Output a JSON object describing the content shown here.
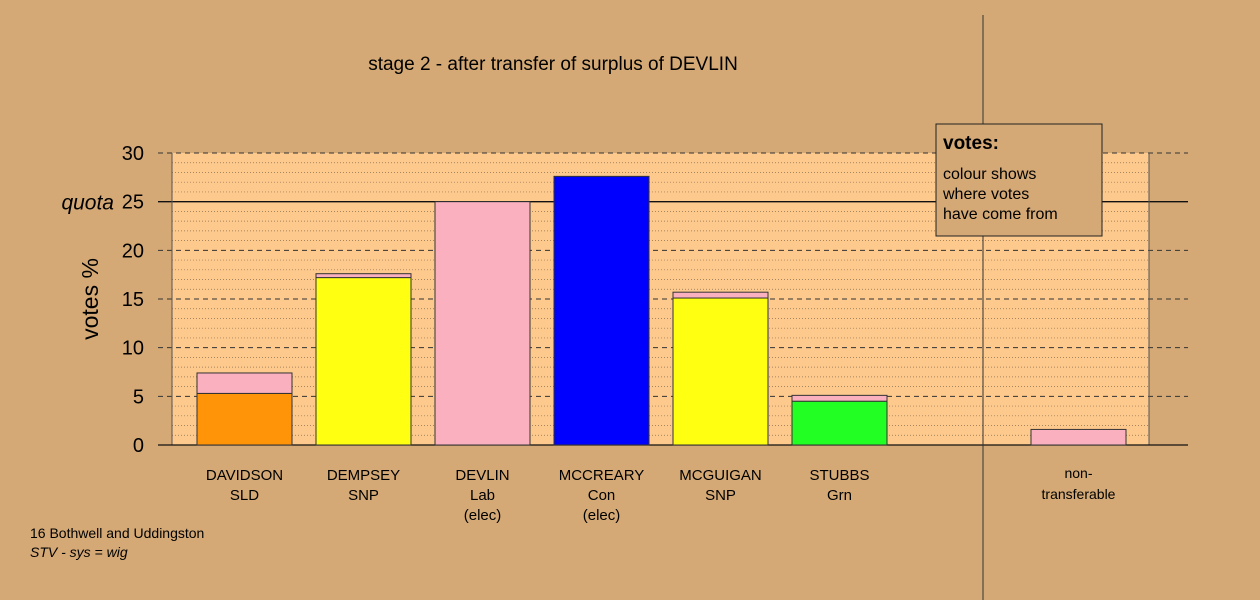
{
  "colors": {
    "background": "#d4a976",
    "plot_area": "#fdc98d",
    "SLD": "#ff9408",
    "SNP": "#ffff12",
    "Lab": "#fbb0c0",
    "Con": "#0000ff",
    "Grn": "#22ff22"
  },
  "title": "stage 2 - after transfer of surplus of DEVLIN",
  "footer": {
    "line1": "16 Bothwell and Uddingston",
    "line2": "STV - sys = wig"
  },
  "legend": {
    "heading": "votes:",
    "lines": [
      "colour shows",
      "where votes",
      "have come from"
    ]
  },
  "chart_data": {
    "type": "bar",
    "stacked": true,
    "title": "stage 2 - after transfer of surplus of DEVLIN",
    "ylabel": "votes %",
    "ylim": [
      0,
      30
    ],
    "yticks": [
      0,
      5,
      10,
      15,
      20,
      25,
      30
    ],
    "quota": {
      "label": "quota",
      "value": 25
    },
    "grid": true,
    "candidates": [
      {
        "name": "DAVIDSON",
        "party": "SLD",
        "note": "",
        "segments": [
          {
            "from": "SLD",
            "value": 5.3
          },
          {
            "from": "Lab",
            "value": 2.1
          }
        ]
      },
      {
        "name": "DEMPSEY",
        "party": "SNP",
        "note": "",
        "segments": [
          {
            "from": "SNP",
            "value": 17.2
          },
          {
            "from": "Lab",
            "value": 0.4
          }
        ]
      },
      {
        "name": "DEVLIN",
        "party": "Lab",
        "note": "(elec)",
        "segments": [
          {
            "from": "Lab",
            "value": 25
          }
        ]
      },
      {
        "name": "MCCREARY",
        "party": "Con",
        "note": "(elec)",
        "segments": [
          {
            "from": "Con",
            "value": 27.6
          }
        ]
      },
      {
        "name": "MCGUIGAN",
        "party": "SNP",
        "note": "",
        "segments": [
          {
            "from": "SNP",
            "value": 15.1
          },
          {
            "from": "Lab",
            "value": 0.6
          }
        ]
      },
      {
        "name": "STUBBS",
        "party": "Grn",
        "note": "",
        "segments": [
          {
            "from": "Grn",
            "value": 4.5
          },
          {
            "from": "Lab",
            "value": 0.6
          }
        ]
      }
    ],
    "non_transferable": {
      "label_line1": "non-",
      "label_line2": "transferable",
      "segments": [
        {
          "from": "Lab",
          "value": 1.6
        }
      ]
    }
  }
}
